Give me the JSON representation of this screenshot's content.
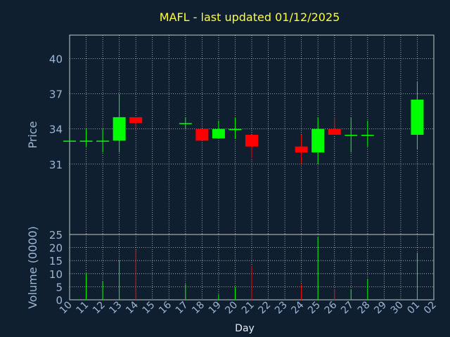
{
  "title": "MAFL - last updated 01/12/2025",
  "chart_data": {
    "type": "candlestick",
    "xlabel": "Day",
    "categories": [
      "10",
      "11",
      "12",
      "13",
      "14",
      "15",
      "16",
      "17",
      "18",
      "19",
      "20",
      "21",
      "22",
      "23",
      "24",
      "25",
      "26",
      "27",
      "28",
      "29",
      "30",
      "01",
      "02"
    ],
    "price": {
      "ylabel": "Price",
      "ylim": [
        25,
        42
      ],
      "yticks": [
        31,
        34,
        37,
        40
      ],
      "candles": [
        {
          "day": "10",
          "open": 33.0,
          "high": 33.0,
          "low": 33.0,
          "close": 33.0
        },
        {
          "day": "11",
          "open": 33.0,
          "high": 34.0,
          "low": 32.5,
          "close": 33.0
        },
        {
          "day": "12",
          "open": 33.0,
          "high": 34.0,
          "low": 32.0,
          "close": 33.0
        },
        {
          "day": "13",
          "open": 33.0,
          "high": 37.0,
          "low": 32.0,
          "close": 35.0
        },
        {
          "day": "14",
          "open": 35.0,
          "high": 35.0,
          "low": 34.0,
          "close": 34.5
        },
        {
          "day": "17",
          "open": 34.5,
          "high": 35.0,
          "low": 34.0,
          "close": 34.5
        },
        {
          "day": "18",
          "open": 34.0,
          "high": 34.0,
          "low": 33.0,
          "close": 33.0
        },
        {
          "day": "19",
          "open": 33.2,
          "high": 34.7,
          "low": 33.2,
          "close": 34.0
        },
        {
          "day": "20",
          "open": 33.9,
          "high": 35.0,
          "low": 33.2,
          "close": 34.0
        },
        {
          "day": "21",
          "open": 33.5,
          "high": 33.5,
          "low": 31.5,
          "close": 32.5
        },
        {
          "day": "24",
          "open": 32.5,
          "high": 33.5,
          "low": 31.0,
          "close": 32.0
        },
        {
          "day": "25",
          "open": 32.0,
          "high": 35.0,
          "low": 31.0,
          "close": 34.0
        },
        {
          "day": "26",
          "open": 34.0,
          "high": 35.0,
          "low": 33.5,
          "close": 33.5
        },
        {
          "day": "27",
          "open": 33.5,
          "high": 35.0,
          "low": 32.0,
          "close": 33.5
        },
        {
          "day": "28",
          "open": 33.5,
          "high": 34.7,
          "low": 32.5,
          "close": 33.5
        },
        {
          "day": "01",
          "open": 33.5,
          "high": 38.0,
          "low": 32.3,
          "close": 36.5
        }
      ]
    },
    "volume": {
      "ylabel": "Volume (0000)",
      "ylim": [
        0,
        25
      ],
      "yticks": [
        0,
        5,
        10,
        15,
        20,
        25
      ],
      "bars": [
        {
          "day": "11",
          "value": 10
        },
        {
          "day": "12",
          "value": 7
        },
        {
          "day": "13",
          "value": 15
        },
        {
          "day": "14",
          "value": 19
        },
        {
          "day": "17",
          "value": 6
        },
        {
          "day": "19",
          "value": 2
        },
        {
          "day": "20",
          "value": 5
        },
        {
          "day": "21",
          "value": 13
        },
        {
          "day": "24",
          "value": 6
        },
        {
          "day": "25",
          "value": 24
        },
        {
          "day": "26",
          "value": 4
        },
        {
          "day": "27",
          "value": 4
        },
        {
          "day": "28",
          "value": 8
        },
        {
          "day": "01",
          "value": 18
        }
      ]
    },
    "grid": true,
    "colors": {
      "up": "#00ff00",
      "down": "#ff0000",
      "grid": "#c8c8c8",
      "axis": "#c8c8c8",
      "background": "#0f1f30"
    }
  }
}
